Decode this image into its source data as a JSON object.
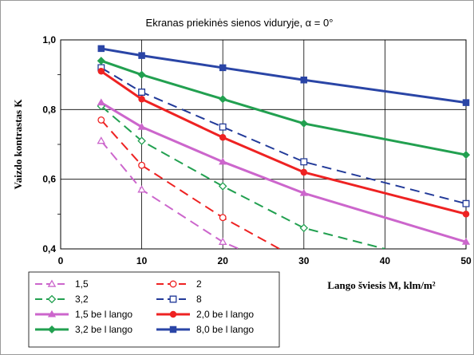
{
  "chart_data": {
    "type": "line",
    "title": "Ekranas priekinės sienos viduryje, α = 0°",
    "xlabel": "Lango šviesis M, klm/m²",
    "ylabel": "Vaizdo kontrastas K",
    "xlim": [
      0,
      50
    ],
    "ylim": [
      0.4,
      1.0
    ],
    "xticks": [
      "0",
      "10",
      "20",
      "30",
      "40",
      "50"
    ],
    "yticks": [
      "0,4",
      "0,6",
      "0,8",
      "1,0"
    ],
    "grid": true,
    "legend_position": "bottom-left",
    "series": [
      {
        "name": "1,5",
        "color": "#cc66cc",
        "style": "dashed",
        "marker": "triangle-open",
        "x": [
          5,
          10,
          20,
          22
        ],
        "y": [
          0.71,
          0.57,
          0.42,
          0.4
        ]
      },
      {
        "name": "2",
        "color": "#ee2222",
        "style": "dashed",
        "marker": "circle-open",
        "x": [
          5,
          10,
          20,
          27
        ],
        "y": [
          0.77,
          0.64,
          0.49,
          0.4
        ]
      },
      {
        "name": "3,2",
        "color": "#22a050",
        "style": "dashed",
        "marker": "diamond-open",
        "x": [
          5,
          10,
          20,
          30,
          40
        ],
        "y": [
          0.81,
          0.71,
          0.58,
          0.46,
          0.4
        ]
      },
      {
        "name": "8",
        "color": "#223a99",
        "style": "dashed",
        "marker": "square-open",
        "x": [
          5,
          10,
          20,
          30,
          50
        ],
        "y": [
          0.92,
          0.85,
          0.75,
          0.65,
          0.53
        ]
      },
      {
        "name": "1,5 be l lango",
        "color": "#cc66cc",
        "style": "solid",
        "marker": "triangle-filled",
        "x": [
          5,
          10,
          20,
          30,
          50
        ],
        "y": [
          0.82,
          0.75,
          0.65,
          0.56,
          0.42
        ]
      },
      {
        "name": "2,0 be l lango",
        "color": "#ee2222",
        "style": "solid",
        "marker": "circle-filled",
        "x": [
          5,
          10,
          20,
          30,
          50
        ],
        "y": [
          0.91,
          0.83,
          0.72,
          0.62,
          0.5
        ]
      },
      {
        "name": "3,2 be l lango",
        "color": "#22a050",
        "style": "solid",
        "marker": "diamond-filled",
        "x": [
          5,
          10,
          20,
          30,
          50
        ],
        "y": [
          0.94,
          0.9,
          0.83,
          0.76,
          0.67
        ]
      },
      {
        "name": "8,0 be l lango",
        "color": "#2a45a6",
        "style": "solid",
        "marker": "square-filled",
        "x": [
          5,
          10,
          20,
          30,
          50
        ],
        "y": [
          0.975,
          0.955,
          0.92,
          0.885,
          0.82
        ]
      }
    ]
  }
}
